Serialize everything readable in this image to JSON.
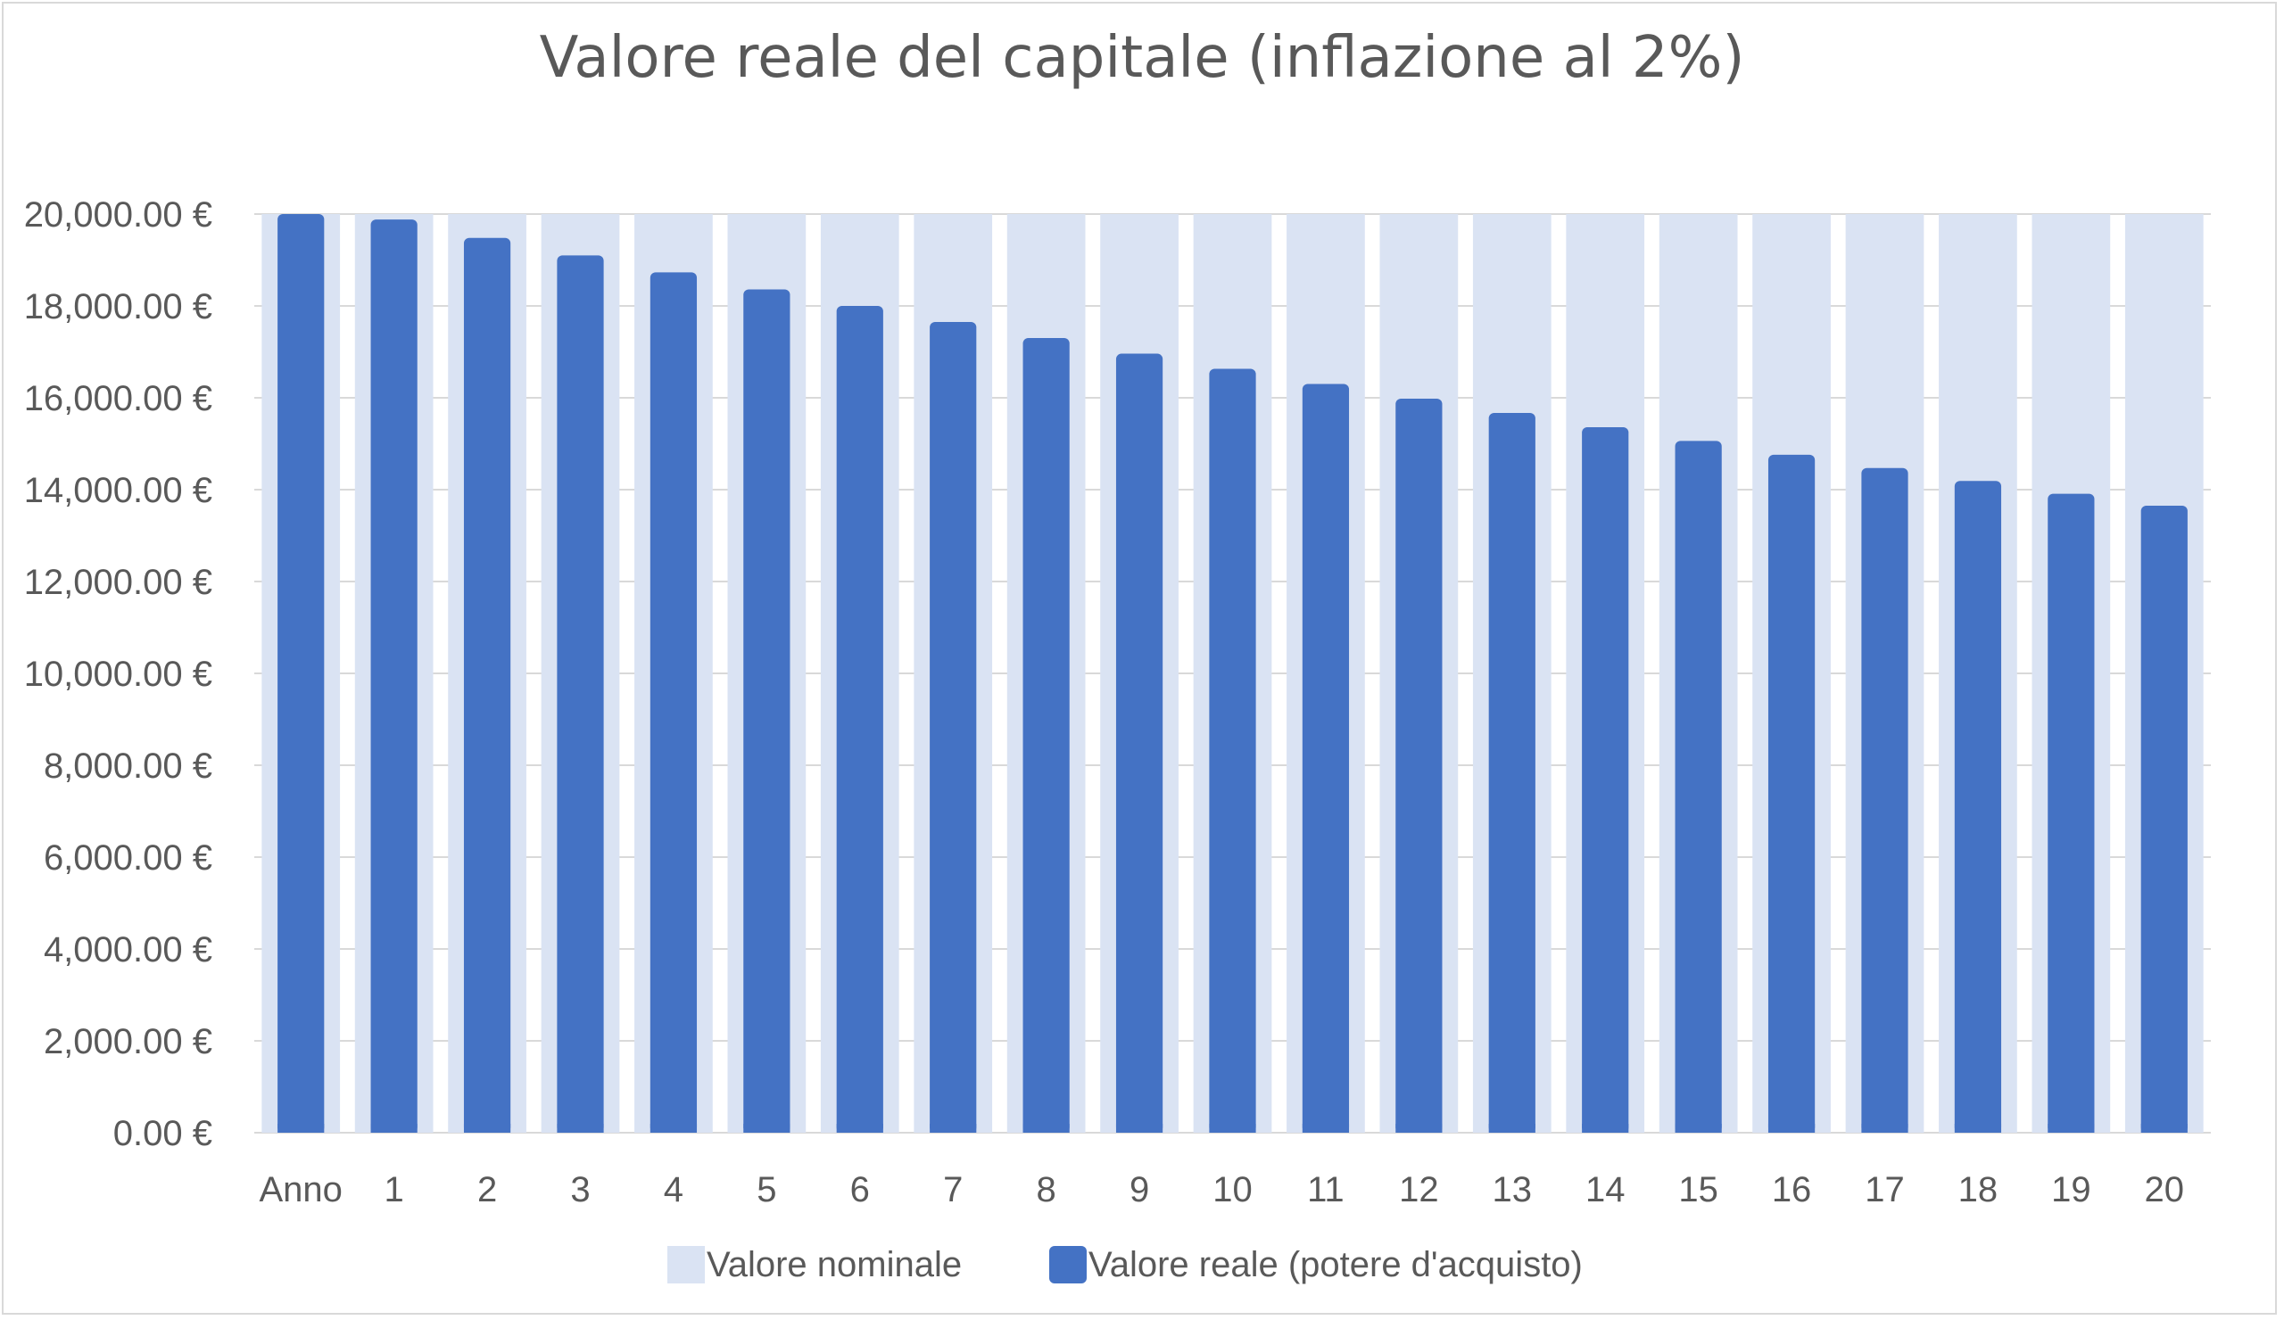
{
  "chart_data": {
    "type": "bar",
    "title": "Valore reale del capitale (inflazione al 2%)",
    "xlabel": "",
    "ylabel": "",
    "ylim": [
      0,
      20000
    ],
    "y_ticks": [
      "0.00 €",
      "2,000.00 €",
      "4,000.00 €",
      "6,000.00 €",
      "8,000.00 €",
      "10,000.00 €",
      "12,000.00 €",
      "14,000.00 €",
      "16,000.00 €",
      "18,000.00 €",
      "20,000.00 €"
    ],
    "y_tick_values": [
      0,
      2000,
      4000,
      6000,
      8000,
      10000,
      12000,
      14000,
      16000,
      18000,
      20000
    ],
    "categories": [
      "Anno",
      "1",
      "2",
      "3",
      "4",
      "5",
      "6",
      "7",
      "8",
      "9",
      "10",
      "11",
      "12",
      "13",
      "14",
      "15",
      "16",
      "17",
      "18",
      "19",
      "20"
    ],
    "series": [
      {
        "name": "Valore nominale",
        "color": "#dae3f3",
        "values": [
          20000,
          20000,
          20000,
          20000,
          20000,
          20000,
          20000,
          20000,
          20000,
          20000,
          20000,
          20000,
          20000,
          20000,
          20000,
          20000,
          20000,
          20000,
          20000,
          20000,
          20000
        ]
      },
      {
        "name": "Valore reale (potere d'acquisto)",
        "color": "#4472c4",
        "values": [
          20000,
          19880,
          19480,
          19100,
          18730,
          18360,
          18000,
          17650,
          17300,
          16960,
          16630,
          16300,
          15980,
          15670,
          15360,
          15060,
          14760,
          14470,
          14190,
          13910,
          13650
        ]
      }
    ],
    "grid": true,
    "legend": "bottom"
  }
}
